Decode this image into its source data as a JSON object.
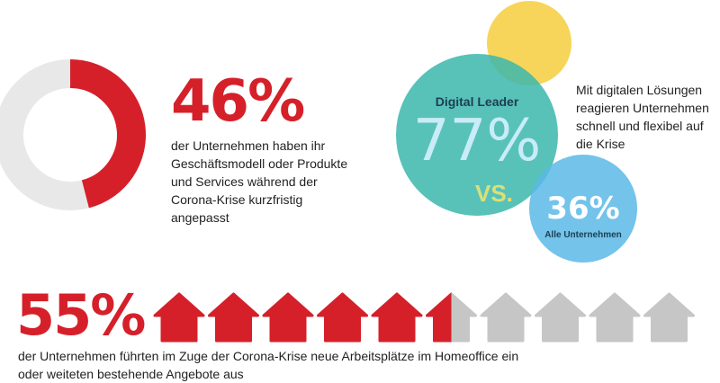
{
  "colors": {
    "red": "#d5202a",
    "grey": "#e8e8e8",
    "house_grey": "#c6c6c6",
    "yellow": "#f7d55a",
    "teal": "#3bb7ad",
    "blue": "#5bb8e8",
    "pale_blue": "#c9ecf7",
    "yellow_green": "#d9e07a",
    "dark_text": "#1d4050"
  },
  "donut": {
    "value_label": "46%",
    "text": [
      "der Unternehmen haben ihr",
      "Geschäftsmodell oder Produkte",
      "und Services während der",
      "Corona-Krise kurzfristig",
      "angepasst"
    ]
  },
  "circles": {
    "leader_label": "Digital Leader",
    "leader_value": "77%",
    "vs": "VS.",
    "all_value": "36%",
    "all_label": "Alle Unternehmen",
    "text": [
      "Mit digitalen Lösungen",
      "reagieren Unternehmen",
      "schnell und flexibel auf",
      "die Krise"
    ]
  },
  "houses": {
    "value_label": "55%",
    "text": [
      "der Unternehmen führten im Zuge der Corona-Krise neue Arbeitsplätze im Homeoffice ein",
      "oder weiteten bestehende Angebote aus"
    ]
  },
  "chart_data": [
    {
      "type": "pie",
      "variant": "donut",
      "values": [
        46,
        54
      ],
      "highlight_color": "#d5202a",
      "rest_color": "#e8e8e8"
    },
    {
      "type": "bubble",
      "values": [
        {
          "label": "Digital Leader",
          "value": 77
        },
        {
          "label": "Alle Unternehmen",
          "value": 36
        }
      ]
    },
    {
      "type": "pictogram",
      "icon": "house-icon",
      "total_icons": 10,
      "value": 55
    }
  ]
}
